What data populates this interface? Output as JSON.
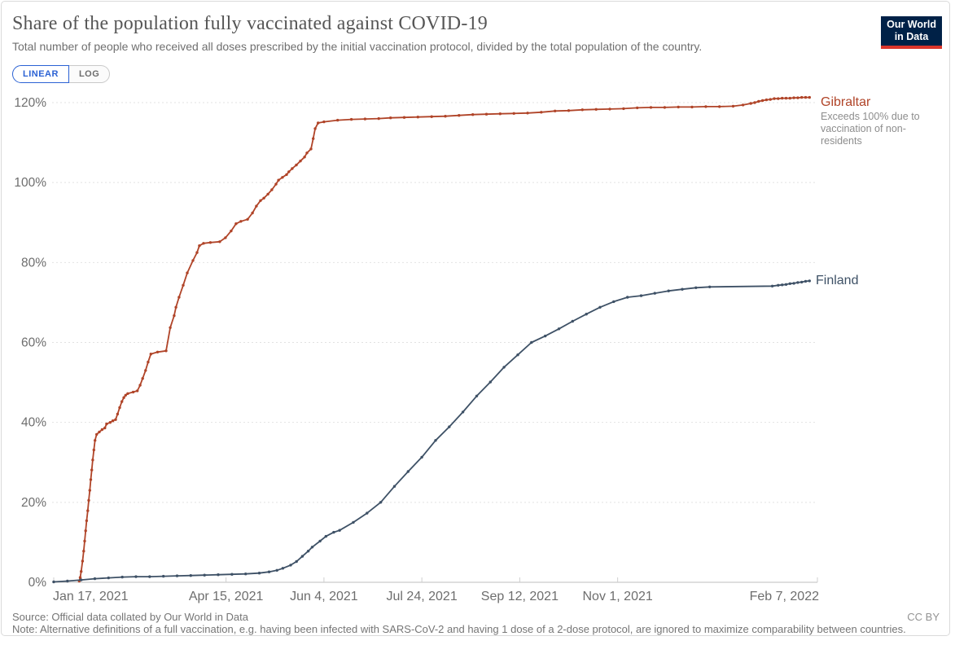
{
  "header": {
    "title": "Share of the population fully vaccinated against COVID-19",
    "subtitle": "Total number of people who received all doses prescribed by the initial vaccination protocol, divided by the total population of the country.",
    "logo_line1": "Our World",
    "logo_line2": "in Data"
  },
  "controls": {
    "linear_label": "LINEAR",
    "log_label": "LOG",
    "active_scale": "LINEAR"
  },
  "footer": {
    "source": "Source: Official data collated by Our World in Data",
    "note": "Note: Alternative definitions of a full vaccination, e.g. having been infected with SARS-CoV-2 and having 1 dose of a 2-dose protocol, are ignored to maximize comparability between countries.",
    "license": "CC BY"
  },
  "colors": {
    "gibraltar": "#B04428",
    "finland": "#3E5166",
    "gridline": "#e2e2e2",
    "axis_line": "#bcbcbc",
    "tick_text": "#6e6e6e",
    "logo_bg": "#002147",
    "logo_bar": "#dc352b",
    "active_blue": "#2b62d4"
  },
  "chart_data": {
    "type": "line",
    "title": "Share of the population fully vaccinated against COVID-19",
    "x_unit": "days since Jan 17, 2021",
    "y_unit": "%",
    "ylim": [
      0,
      122
    ],
    "grid": "dashed-horizontal",
    "x_axis": {
      "tick_labels": [
        "Jan 17, 2021",
        "Apr 15, 2021",
        "Jun 4, 2021",
        "Jul 24, 2021",
        "Sep 12, 2021",
        "Nov 1, 2021",
        "Feb 7, 2022"
      ],
      "tick_days": [
        0,
        88,
        138,
        188,
        238,
        288,
        386
      ]
    },
    "y_axis": {
      "ticks": [
        0,
        20,
        40,
        60,
        80,
        100,
        120
      ],
      "tick_labels": [
        "0%",
        "20%",
        "40%",
        "60%",
        "80%",
        "100%",
        "120%"
      ]
    },
    "series": [
      {
        "name": "Gibraltar",
        "color": "#B04428",
        "annotation": "Exceeds 100% due to vaccination of non-residents",
        "points": [
          [
            13,
            0.3
          ],
          [
            13.5,
            1.2
          ],
          [
            14,
            2.7
          ],
          [
            14.7,
            5.3
          ],
          [
            15.3,
            7.8
          ],
          [
            15.8,
            10.3
          ],
          [
            16.3,
            12.9
          ],
          [
            16.8,
            15.4
          ],
          [
            17.4,
            17.9
          ],
          [
            17.9,
            20.5
          ],
          [
            18.4,
            23
          ],
          [
            18.9,
            25.7
          ],
          [
            19.4,
            28.1
          ],
          [
            19.9,
            30.6
          ],
          [
            20.5,
            33.1
          ],
          [
            21.1,
            35.5
          ],
          [
            21.9,
            37
          ],
          [
            23.3,
            37.6
          ],
          [
            24.7,
            38.2
          ],
          [
            26.1,
            38.6
          ],
          [
            27,
            39.6
          ],
          [
            28.8,
            40
          ],
          [
            30.2,
            40.4
          ],
          [
            31.6,
            40.7
          ],
          [
            32.6,
            42.1
          ],
          [
            33.7,
            43.7
          ],
          [
            34.8,
            45.2
          ],
          [
            35.8,
            46.2
          ],
          [
            36.7,
            46.8
          ],
          [
            37.8,
            47.2
          ],
          [
            40.6,
            47.6
          ],
          [
            42.7,
            47.9
          ],
          [
            44.1,
            49.3
          ],
          [
            45.4,
            51
          ],
          [
            46.9,
            53
          ],
          [
            48.2,
            55.1
          ],
          [
            49.6,
            57.1
          ],
          [
            53,
            57.6
          ],
          [
            57.4,
            57.9
          ],
          [
            59.5,
            63.7
          ],
          [
            61.5,
            66.7
          ],
          [
            62.4,
            68.8
          ],
          [
            64,
            71.3
          ],
          [
            66.1,
            74.3
          ],
          [
            68.2,
            77.4
          ],
          [
            71.1,
            80.5
          ],
          [
            73.2,
            82.5
          ],
          [
            74.4,
            84.2
          ],
          [
            76.5,
            84.8
          ],
          [
            80,
            85
          ],
          [
            84.8,
            85.2
          ],
          [
            87.7,
            86.2
          ],
          [
            90.6,
            87.9
          ],
          [
            93.1,
            89.7
          ],
          [
            95.6,
            90.3
          ],
          [
            99,
            90.8
          ],
          [
            101.5,
            92.4
          ],
          [
            103.5,
            94.1
          ],
          [
            105.6,
            95.5
          ],
          [
            107.3,
            96.1
          ],
          [
            109.4,
            97.1
          ],
          [
            111.4,
            98.2
          ],
          [
            113.5,
            99.6
          ],
          [
            114.8,
            100.6
          ],
          [
            116.8,
            101.3
          ],
          [
            118.9,
            102
          ],
          [
            120.1,
            102.7
          ],
          [
            121.8,
            103.5
          ],
          [
            123.9,
            104.4
          ],
          [
            126,
            105.4
          ],
          [
            128.1,
            106.4
          ],
          [
            129.3,
            107.4
          ],
          [
            131.4,
            108.4
          ],
          [
            132.5,
            111
          ],
          [
            133.5,
            113.5
          ],
          [
            135,
            114.9
          ],
          [
            138,
            115.2
          ],
          [
            145,
            115.6
          ],
          [
            152,
            115.8
          ],
          [
            159,
            115.9
          ],
          [
            166,
            116
          ],
          [
            172,
            116.2
          ],
          [
            179,
            116.3
          ],
          [
            186,
            116.4
          ],
          [
            193,
            116.5
          ],
          [
            200,
            116.6
          ],
          [
            207,
            116.8
          ],
          [
            214,
            117
          ],
          [
            221,
            117.1
          ],
          [
            228,
            117.2
          ],
          [
            235,
            117.3
          ],
          [
            242,
            117.4
          ],
          [
            249,
            117.6
          ],
          [
            256,
            117.9
          ],
          [
            263,
            118
          ],
          [
            270,
            118.2
          ],
          [
            277,
            118.3
          ],
          [
            284,
            118.4
          ],
          [
            291,
            118.5
          ],
          [
            298,
            118.7
          ],
          [
            305,
            118.8
          ],
          [
            312,
            118.8
          ],
          [
            319,
            118.9
          ],
          [
            326,
            118.9
          ],
          [
            333,
            119
          ],
          [
            340,
            119
          ],
          [
            347,
            119.1
          ],
          [
            352,
            119.4
          ],
          [
            356,
            119.8
          ],
          [
            358,
            120
          ],
          [
            360,
            120.3
          ],
          [
            362,
            120.5
          ],
          [
            364,
            120.7
          ],
          [
            366,
            120.8
          ],
          [
            368,
            121
          ],
          [
            370,
            121
          ],
          [
            372,
            121.1
          ],
          [
            374,
            121.1
          ],
          [
            376,
            121.1
          ],
          [
            378,
            121.2
          ],
          [
            380,
            121.2
          ],
          [
            382,
            121.3
          ],
          [
            384,
            121.3
          ],
          [
            386,
            121.3
          ]
        ]
      },
      {
        "name": "Finland",
        "color": "#3E5166",
        "annotation": "",
        "points": [
          [
            0,
            0.1
          ],
          [
            7,
            0.3
          ],
          [
            14,
            0.6
          ],
          [
            21,
            0.9
          ],
          [
            28,
            1.1
          ],
          [
            35,
            1.3
          ],
          [
            42,
            1.4
          ],
          [
            49,
            1.4
          ],
          [
            56,
            1.5
          ],
          [
            63,
            1.6
          ],
          [
            70,
            1.7
          ],
          [
            77,
            1.8
          ],
          [
            84,
            1.9
          ],
          [
            91,
            2
          ],
          [
            98,
            2.1
          ],
          [
            105,
            2.3
          ],
          [
            110,
            2.6
          ],
          [
            114,
            3
          ],
          [
            117,
            3.5
          ],
          [
            121,
            4.3
          ],
          [
            124,
            5.2
          ],
          [
            127,
            6.5
          ],
          [
            130,
            7.8
          ],
          [
            132,
            8.8
          ],
          [
            136,
            10.3
          ],
          [
            139,
            11.5
          ],
          [
            143,
            12.5
          ],
          [
            146,
            13
          ],
          [
            153,
            15
          ],
          [
            160,
            17.3
          ],
          [
            167,
            20
          ],
          [
            174,
            24
          ],
          [
            181,
            27.7
          ],
          [
            188,
            31.3
          ],
          [
            195,
            35.5
          ],
          [
            202,
            38.9
          ],
          [
            209,
            42.6
          ],
          [
            216,
            46.6
          ],
          [
            223,
            50.1
          ],
          [
            230,
            53.8
          ],
          [
            237,
            56.9
          ],
          [
            244,
            60
          ],
          [
            251,
            61.6
          ],
          [
            258,
            63.4
          ],
          [
            265,
            65.3
          ],
          [
            272,
            67.1
          ],
          [
            279,
            68.8
          ],
          [
            286,
            70.2
          ],
          [
            293,
            71.3
          ],
          [
            300,
            71.7
          ],
          [
            307,
            72.3
          ],
          [
            314,
            72.9
          ],
          [
            321,
            73.3
          ],
          [
            328,
            73.7
          ],
          [
            335,
            73.9
          ],
          [
            367,
            74.1
          ],
          [
            370,
            74.3
          ],
          [
            372,
            74.4
          ],
          [
            374,
            74.5
          ],
          [
            376,
            74.7
          ],
          [
            378,
            74.8
          ],
          [
            380,
            75
          ],
          [
            382,
            75.1
          ],
          [
            384,
            75.3
          ],
          [
            386,
            75.4
          ]
        ]
      }
    ]
  }
}
